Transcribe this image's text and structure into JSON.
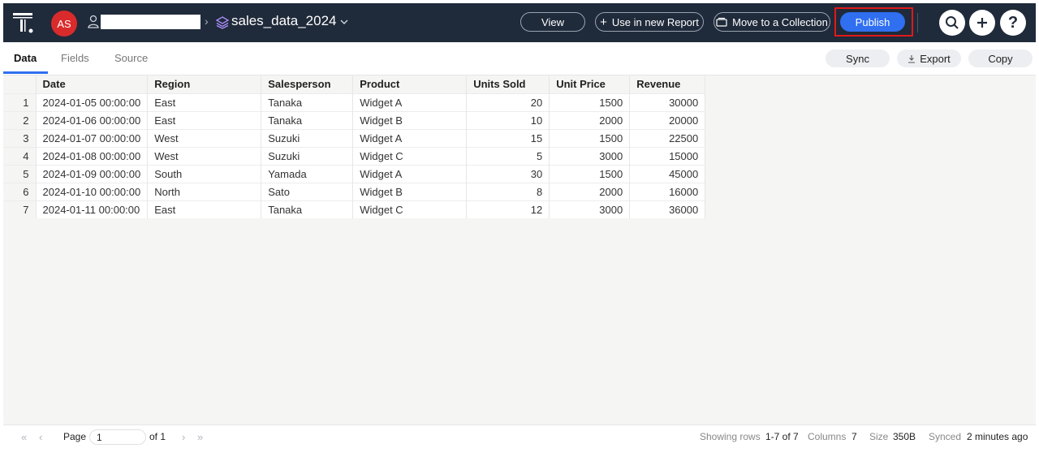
{
  "header": {
    "avatar_initials": "AS",
    "dataset_name": "sales_data_2024",
    "buttons": {
      "view": "View",
      "use_in_report": "Use in new Report",
      "move_to_collection": "Move to a Collection",
      "publish": "Publish"
    },
    "help": "?"
  },
  "tabs": [
    "Data",
    "Fields",
    "Source"
  ],
  "toolbar": {
    "sync": "Sync",
    "export": "Export",
    "copy": "Copy"
  },
  "table": {
    "columns": [
      "Date",
      "Region",
      "Salesperson",
      "Product",
      "Units Sold",
      "Unit Price",
      "Revenue"
    ],
    "rows": [
      [
        "1",
        "2024-01-05 00:00:00",
        "East",
        "Tanaka",
        "Widget A",
        "20",
        "1500",
        "30000"
      ],
      [
        "2",
        "2024-01-06 00:00:00",
        "East",
        "Tanaka",
        "Widget B",
        "10",
        "2000",
        "20000"
      ],
      [
        "3",
        "2024-01-07 00:00:00",
        "West",
        "Suzuki",
        "Widget A",
        "15",
        "1500",
        "22500"
      ],
      [
        "4",
        "2024-01-08 00:00:00",
        "West",
        "Suzuki",
        "Widget C",
        "5",
        "3000",
        "15000"
      ],
      [
        "5",
        "2024-01-09 00:00:00",
        "South",
        "Yamada",
        "Widget A",
        "30",
        "1500",
        "45000"
      ],
      [
        "6",
        "2024-01-10 00:00:00",
        "North",
        "Sato",
        "Widget B",
        "8",
        "2000",
        "16000"
      ],
      [
        "7",
        "2024-01-11 00:00:00",
        "East",
        "Tanaka",
        "Widget C",
        "12",
        "3000",
        "36000"
      ]
    ]
  },
  "footer": {
    "page_label": "Page",
    "page_value": "1",
    "of_label": "of 1",
    "showing_label": "Showing rows",
    "showing_value": "1-7 of 7",
    "columns_label": "Columns",
    "columns_value": "7",
    "size_label": "Size",
    "size_value": "350B",
    "synced_label": "Synced",
    "synced_value": "2 minutes ago"
  },
  "colors": {
    "topbar": "#1f2a3a",
    "accent": "#2f6ff0",
    "avatar": "#d92b2b",
    "highlight": "#e01919"
  }
}
